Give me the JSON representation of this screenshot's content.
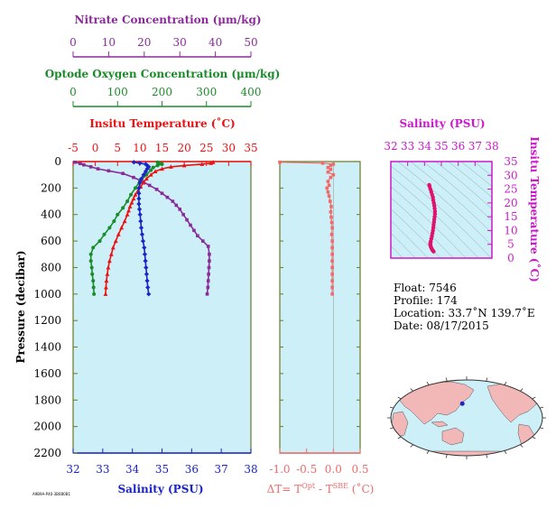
{
  "colors": {
    "nitrate": "#8b2a9b",
    "oxygen": "#1a8c2a",
    "temperature": "#ee1111",
    "salinity": "#1a24c8",
    "delta_t": "#f06a6a",
    "ts_salinity": "#cc18cc",
    "ts_points": "#e0106e",
    "panel_bg": "#cdeff8",
    "panel_frame": "#6b7a25",
    "land": "#f2b8b8",
    "ocean": "#cdeff8"
  },
  "footer_code": "A9B9A-P40-3B0B0B1",
  "chart_data": [
    {
      "type": "line",
      "name": "main-profile",
      "ylabel": "Pressure (decibar)",
      "ylim": [
        0,
        2200
      ],
      "yticks": [
        0,
        200,
        400,
        600,
        800,
        1000,
        1200,
        1400,
        1600,
        1800,
        2000,
        2200
      ],
      "axes": [
        {
          "key": "nitrate",
          "label": "Nitrate Concentration (μm/kg)",
          "range": [
            0,
            50
          ],
          "ticks": [
            0,
            10,
            20,
            30,
            40,
            50
          ],
          "position": "top-1",
          "color_key": "nitrate"
        },
        {
          "key": "oxygen",
          "label": "Optode Oxygen Concentration (μm/kg)",
          "range": [
            0,
            400
          ],
          "ticks": [
            0,
            100,
            200,
            300,
            400
          ],
          "position": "top-2",
          "color_key": "oxygen"
        },
        {
          "key": "temperature",
          "label": "Insitu Temperature (˚C)",
          "range": [
            -5,
            35
          ],
          "ticks": [
            -5,
            0,
            5,
            10,
            15,
            20,
            25,
            30,
            35
          ],
          "position": "top-3",
          "color_key": "temperature"
        },
        {
          "key": "salinity",
          "label": "Salinity (PSU)",
          "range": [
            32,
            38
          ],
          "ticks": [
            32,
            33,
            34,
            35,
            36,
            37,
            38
          ],
          "position": "bottom",
          "color_key": "salinity"
        }
      ],
      "series": [
        {
          "axis": "nitrate",
          "marker": "square",
          "points": [
            [
              0.5,
              5
            ],
            [
              2,
              15
            ],
            [
              3,
              25
            ],
            [
              5,
              40
            ],
            [
              7,
              55
            ],
            [
              10,
              70
            ],
            [
              14,
              90
            ],
            [
              17,
              120
            ],
            [
              19.5,
              150
            ],
            [
              21.5,
              180
            ],
            [
              23.5,
              210
            ],
            [
              25,
              240
            ],
            [
              26.5,
              270
            ],
            [
              28,
              300
            ],
            [
              29,
              330
            ],
            [
              30,
              360
            ],
            [
              31,
              400
            ],
            [
              32,
              440
            ],
            [
              33,
              480
            ],
            [
              34,
              520
            ],
            [
              35,
              560
            ],
            [
              36.5,
              600
            ],
            [
              38,
              640
            ],
            [
              38.3,
              700
            ],
            [
              38.3,
              750
            ],
            [
              38.2,
              800
            ],
            [
              38.1,
              850
            ],
            [
              38,
              900
            ],
            [
              37.9,
              950
            ],
            [
              37.7,
              1000
            ]
          ]
        },
        {
          "axis": "oxygen",
          "marker": "circle",
          "points": [
            [
              190,
              5
            ],
            [
              195,
              12
            ],
            [
              200,
              20
            ],
            [
              190,
              30
            ],
            [
              180,
              45
            ],
            [
              175,
              65
            ],
            [
              165,
              100
            ],
            [
              150,
              150
            ],
            [
              140,
              200
            ],
            [
              130,
              250
            ],
            [
              122,
              300
            ],
            [
              112,
              350
            ],
            [
              100,
              400
            ],
            [
              92,
              450
            ],
            [
              82,
              500
            ],
            [
              70,
              550
            ],
            [
              60,
              600
            ],
            [
              45,
              650
            ],
            [
              40,
              700
            ],
            [
              40,
              750
            ],
            [
              42,
              800
            ],
            [
              43,
              850
            ],
            [
              45,
              900
            ],
            [
              46,
              950
            ],
            [
              47,
              1000
            ]
          ]
        },
        {
          "axis": "temperature",
          "marker": "triangle",
          "points": [
            [
              26.5,
              5
            ],
            [
              26,
              12
            ],
            [
              24,
              20
            ],
            [
              20,
              30
            ],
            [
              17,
              40
            ],
            [
              15,
              55
            ],
            [
              13.5,
              75
            ],
            [
              12.5,
              100
            ],
            [
              11.5,
              130
            ],
            [
              10.8,
              160
            ],
            [
              10.2,
              190
            ],
            [
              9.6,
              220
            ],
            [
              9,
              250
            ],
            [
              8.6,
              280
            ],
            [
              8.2,
              310
            ],
            [
              7.8,
              340
            ],
            [
              7.5,
              370
            ],
            [
              7.2,
              400
            ],
            [
              6.6,
              450
            ],
            [
              5.9,
              500
            ],
            [
              5.2,
              550
            ],
            [
              4.6,
              600
            ],
            [
              4,
              650
            ],
            [
              3.6,
              700
            ],
            [
              3.2,
              750
            ],
            [
              2.9,
              800
            ],
            [
              2.7,
              850
            ],
            [
              2.5,
              900
            ],
            [
              2.4,
              950
            ],
            [
              2.3,
              1000
            ]
          ]
        },
        {
          "axis": "salinity",
          "marker": "diamond",
          "points": [
            [
              34.05,
              5
            ],
            [
              34.25,
              12
            ],
            [
              34.45,
              20
            ],
            [
              34.5,
              30
            ],
            [
              34.55,
              40
            ],
            [
              34.5,
              55
            ],
            [
              34.45,
              75
            ],
            [
              34.38,
              100
            ],
            [
              34.3,
              130
            ],
            [
              34.25,
              160
            ],
            [
              34.22,
              200
            ],
            [
              34.22,
              240
            ],
            [
              34.22,
              280
            ],
            [
              34.22,
              320
            ],
            [
              34.24,
              360
            ],
            [
              34.26,
              400
            ],
            [
              34.28,
              450
            ],
            [
              34.3,
              500
            ],
            [
              34.33,
              550
            ],
            [
              34.36,
              600
            ],
            [
              34.4,
              650
            ],
            [
              34.42,
              700
            ],
            [
              34.44,
              750
            ],
            [
              34.46,
              800
            ],
            [
              34.48,
              850
            ],
            [
              34.5,
              900
            ],
            [
              34.52,
              950
            ],
            [
              34.55,
              1000
            ]
          ]
        }
      ]
    },
    {
      "type": "line",
      "name": "delta-t",
      "xlabel_parts": [
        "ΔT= T",
        "Opt",
        " - T",
        "SBE",
        " (˚C)"
      ],
      "xlim": [
        -1.0,
        0.5
      ],
      "xticks": [
        "-1.0",
        "-0.5",
        "0.0",
        "0.5"
      ],
      "ylim": [
        0,
        2200
      ],
      "points": [
        [
          -1.0,
          5
        ],
        [
          -0.2,
          12
        ],
        [
          0.0,
          20
        ],
        [
          -0.05,
          30
        ],
        [
          -0.1,
          45
        ],
        [
          -0.05,
          60
        ],
        [
          -0.1,
          80
        ],
        [
          0.0,
          100
        ],
        [
          -0.05,
          120
        ],
        [
          -0.1,
          150
        ],
        [
          -0.08,
          180
        ],
        [
          -0.12,
          200
        ],
        [
          -0.1,
          230
        ],
        [
          -0.08,
          260
        ],
        [
          -0.06,
          300
        ],
        [
          -0.04,
          340
        ],
        [
          -0.05,
          380
        ],
        [
          -0.04,
          420
        ],
        [
          -0.03,
          460
        ],
        [
          -0.02,
          500
        ],
        [
          -0.03,
          550
        ],
        [
          -0.02,
          600
        ],
        [
          -0.02,
          650
        ],
        [
          -0.02,
          700
        ],
        [
          -0.02,
          750
        ],
        [
          -0.02,
          800
        ],
        [
          -0.02,
          850
        ],
        [
          -0.02,
          900
        ],
        [
          -0.02,
          950
        ],
        [
          -0.02,
          1000
        ]
      ]
    },
    {
      "type": "scatter",
      "name": "ts-diagram",
      "title": "Salinity (PSU)",
      "ylabel": "Insitu Temperature (˚C)",
      "xlim": [
        32,
        38
      ],
      "xticks": [
        32,
        33,
        34,
        35,
        36,
        37,
        38
      ],
      "ylim": [
        0,
        35
      ],
      "yticks": [
        0,
        5,
        10,
        15,
        20,
        25,
        30,
        35
      ],
      "points": [
        [
          34.28,
          26.5
        ],
        [
          34.3,
          26
        ],
        [
          34.35,
          25
        ],
        [
          34.4,
          24
        ],
        [
          34.45,
          23
        ],
        [
          34.5,
          22
        ],
        [
          34.52,
          21
        ],
        [
          34.55,
          20
        ],
        [
          34.58,
          19
        ],
        [
          34.6,
          18
        ],
        [
          34.62,
          17
        ],
        [
          34.62,
          16
        ],
        [
          34.6,
          15
        ],
        [
          34.58,
          14
        ],
        [
          34.56,
          13
        ],
        [
          34.54,
          12
        ],
        [
          34.52,
          11
        ],
        [
          34.5,
          10
        ],
        [
          34.47,
          9
        ],
        [
          34.44,
          8
        ],
        [
          34.4,
          7
        ],
        [
          34.37,
          6
        ],
        [
          34.35,
          5.5
        ],
        [
          34.34,
          5
        ],
        [
          34.36,
          4.5
        ],
        [
          34.38,
          4
        ],
        [
          34.42,
          3.5
        ],
        [
          34.46,
          3
        ],
        [
          34.5,
          2.7
        ],
        [
          34.54,
          2.4
        ]
      ]
    }
  ],
  "info": {
    "float": "Float:  7546",
    "profile": "Profile:  174",
    "location": "Location:  33.7˚N  139.7˚E",
    "date": "Date:  08/17/2015"
  },
  "map": {
    "type": "map",
    "projection": "hammer-pacific",
    "marker_lat": 33.7,
    "marker_lon": 139.7
  }
}
